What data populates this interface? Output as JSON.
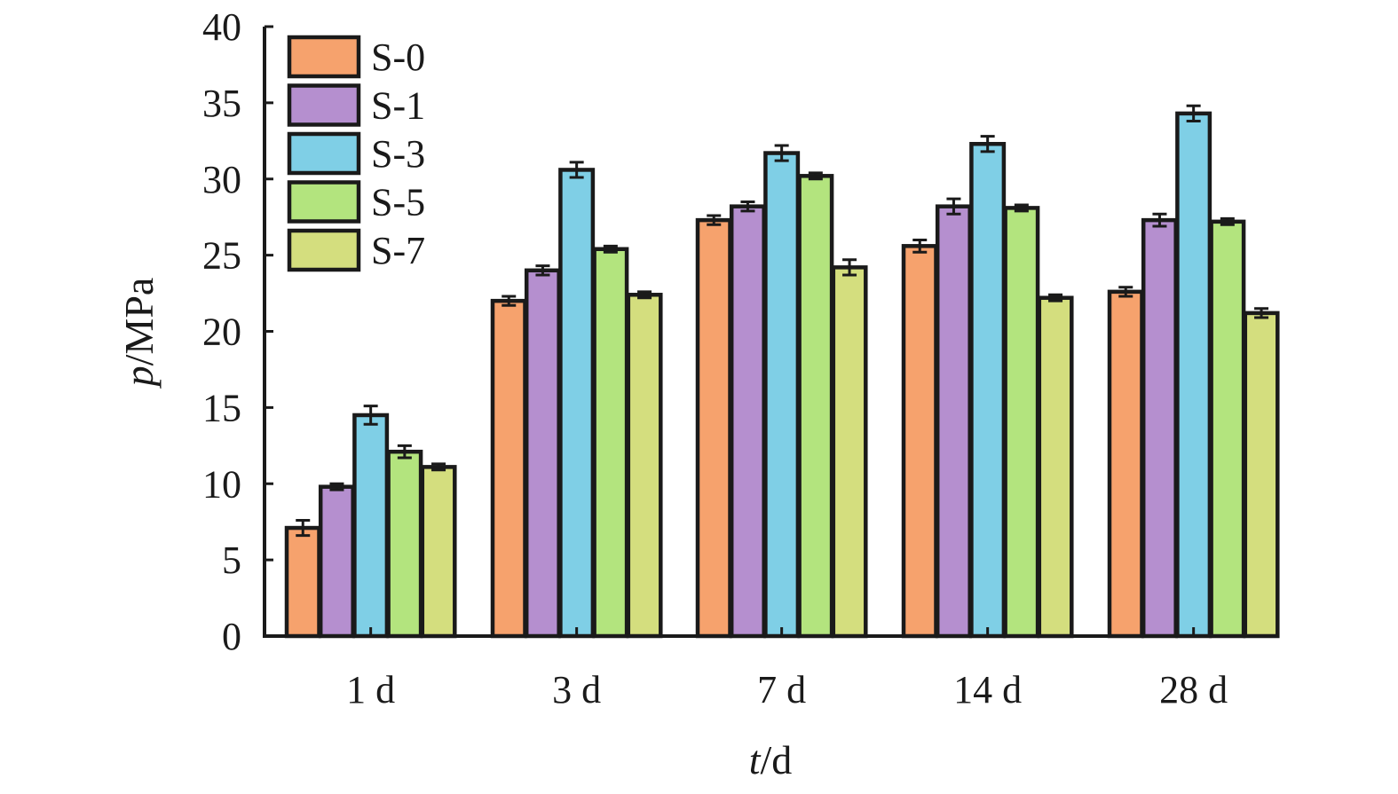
{
  "chart_data": {
    "type": "bar",
    "xlabel": {
      "var": "t",
      "unit": "/d"
    },
    "ylabel": {
      "var": "p",
      "unit": "/MPa"
    },
    "ylim": [
      0,
      40
    ],
    "yticks": [
      0,
      5,
      10,
      15,
      20,
      25,
      30,
      35,
      40
    ],
    "categories": [
      "1 d",
      "3 d",
      "7 d",
      "14 d",
      "28 d"
    ],
    "legend_position": "top-left",
    "grid": false,
    "series": [
      {
        "name": "S-0",
        "color": "#f6a26d",
        "values": [
          7.1,
          22.0,
          27.3,
          25.6,
          22.6
        ],
        "errors": [
          0.5,
          0.3,
          0.3,
          0.4,
          0.3
        ]
      },
      {
        "name": "S-1",
        "color": "#b58fcf",
        "values": [
          9.8,
          24.0,
          28.2,
          28.2,
          27.3
        ],
        "errors": [
          0.2,
          0.3,
          0.3,
          0.5,
          0.4
        ]
      },
      {
        "name": "S-3",
        "color": "#7fcfe6",
        "values": [
          14.5,
          30.6,
          31.7,
          32.3,
          34.3
        ],
        "errors": [
          0.6,
          0.5,
          0.5,
          0.5,
          0.5
        ]
      },
      {
        "name": "S-5",
        "color": "#b3e47e",
        "values": [
          12.1,
          25.4,
          30.2,
          28.1,
          27.2
        ],
        "errors": [
          0.4,
          0.2,
          0.2,
          0.2,
          0.2
        ]
      },
      {
        "name": "S-7",
        "color": "#d4de7e",
        "values": [
          11.1,
          22.4,
          24.2,
          22.2,
          21.2
        ],
        "errors": [
          0.2,
          0.2,
          0.5,
          0.2,
          0.3
        ]
      }
    ]
  }
}
